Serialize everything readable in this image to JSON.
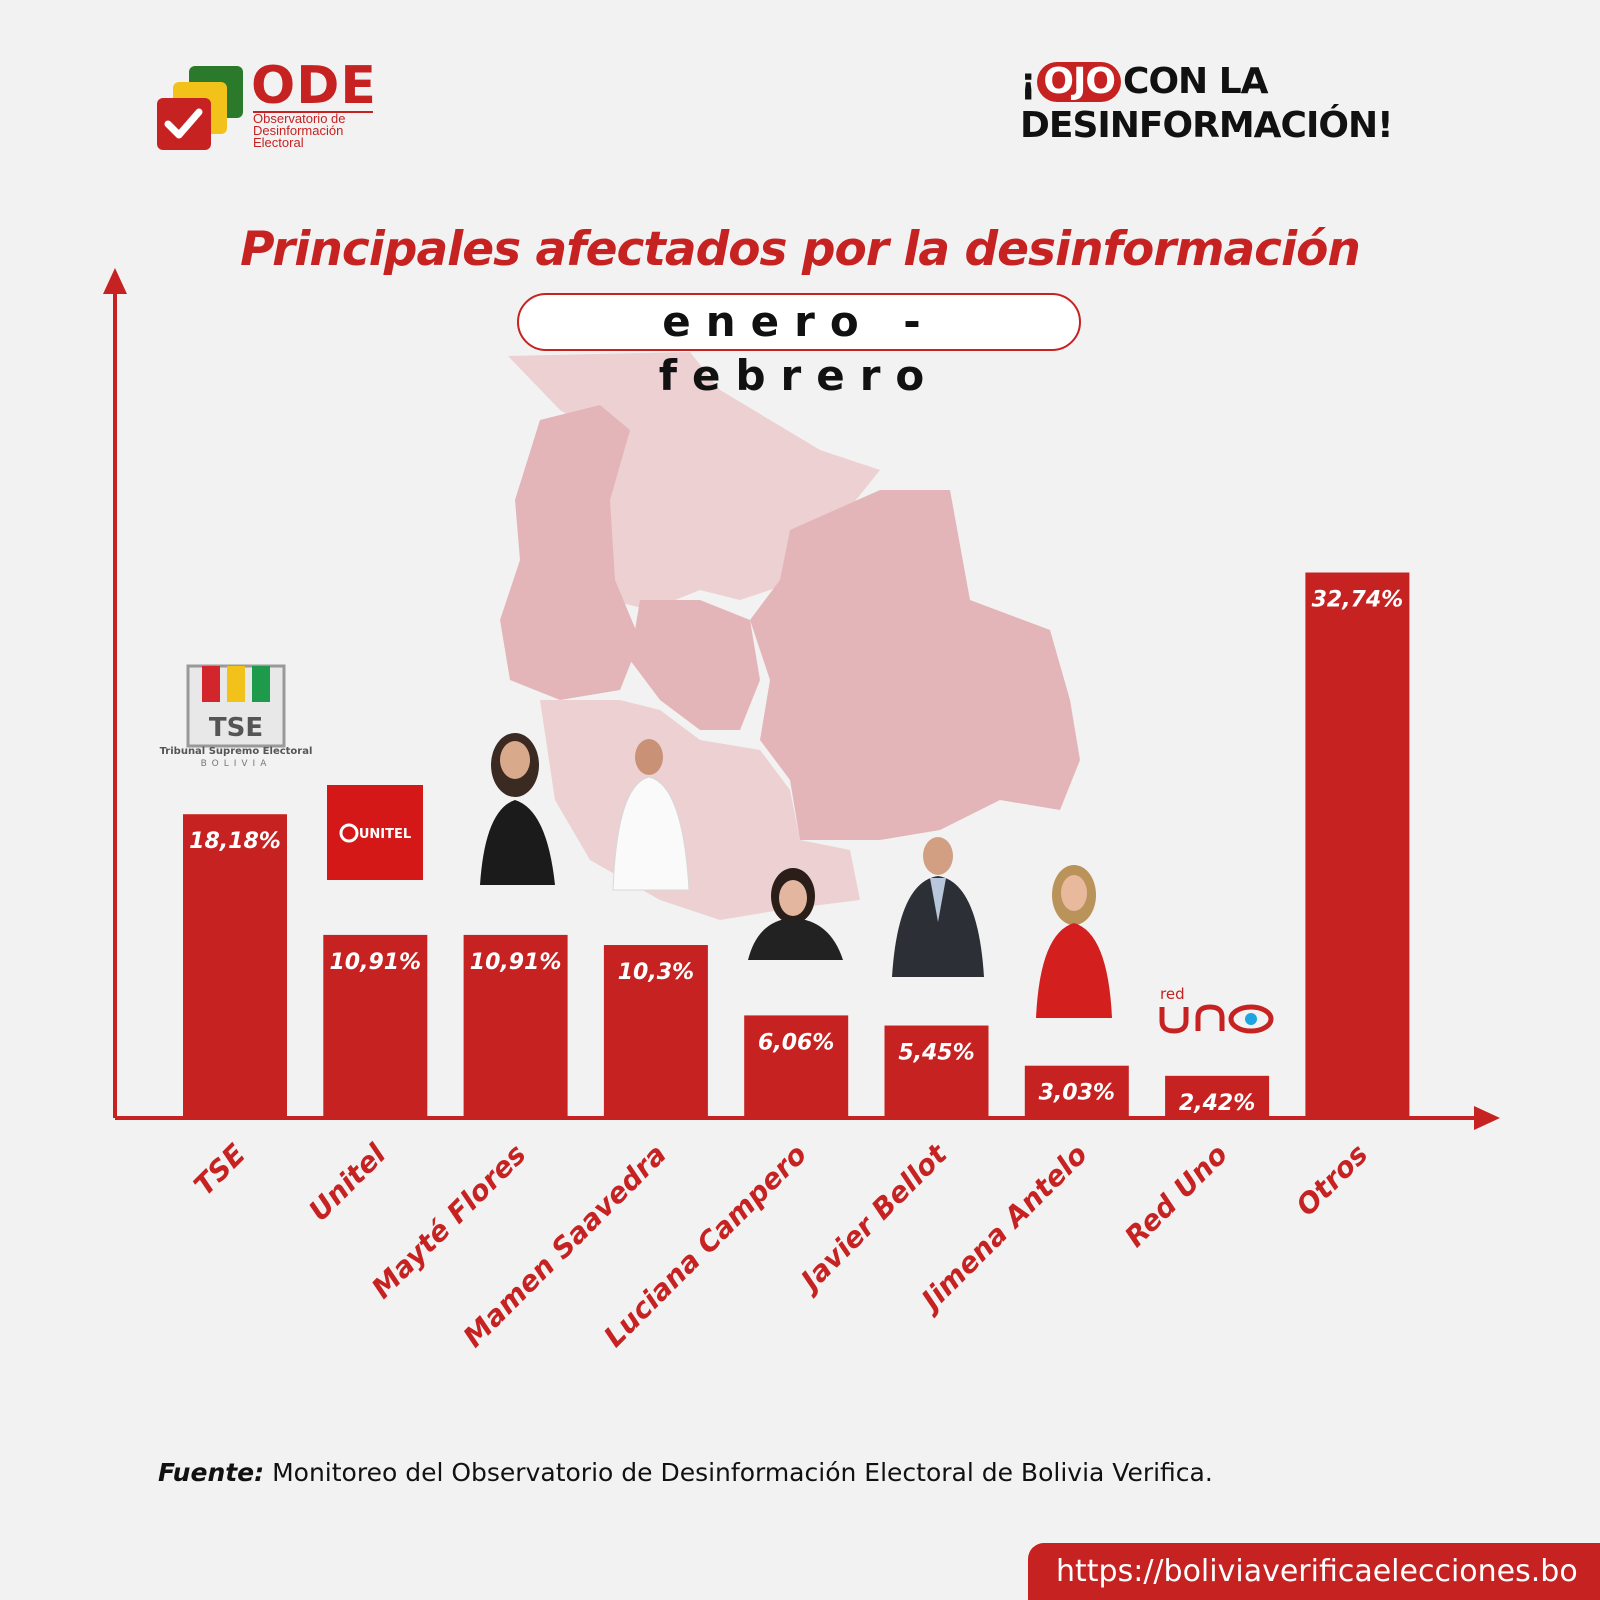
{
  "header": {
    "logo_word": "ODE",
    "logo_subtitle": [
      "Observatorio de",
      "Desinformación",
      "Electoral"
    ],
    "slogan_prefix": "¡",
    "slogan_highlight": "OJO",
    "slogan_rest": "CON LA",
    "slogan_line2": "DESINFORMACIÓN!"
  },
  "title": "Principales afectados por la desinformación",
  "subtitle": "enero - febrero",
  "logos": {
    "tse_text": "TSE",
    "tse_line1": "Tribunal Supremo Electoral",
    "tse_line2": "BOLIVIA",
    "unitel_text": "UNITEL",
    "redUno_small": "red",
    "redUno_big": "UNO"
  },
  "chart_data": {
    "type": "bar",
    "title": "Principales afectados por la desinformación",
    "subtitle": "enero - febrero",
    "categories": [
      "TSE",
      "Unitel",
      "Mayté Flores",
      "Mamen Saavedra",
      "Luciana Campero",
      "Javier Bellot",
      "Jimena Antelo",
      "Red Uno",
      "Otros"
    ],
    "values": [
      18.18,
      10.91,
      10.91,
      10.3,
      6.06,
      5.45,
      3.03,
      2.42,
      32.74
    ],
    "value_labels": [
      "18,18%",
      "10,91%",
      "10,91%",
      "10,3%",
      "6,06%",
      "5,45%",
      "3,03%",
      "2,42%",
      "32,74%"
    ],
    "unit": "%",
    "ylim": [
      0,
      50
    ],
    "grid": false,
    "bar_color": "#c62222"
  },
  "footer": {
    "source_label": "Fuente:",
    "source_text": "Monitoreo del Observatorio de Desinformación Electoral de Bolivia Verifica.",
    "url": "https://boliviaverificaelecciones.bo"
  },
  "colors": {
    "accent": "#c62222",
    "background": "#f2f2f2",
    "map": "#e3b5b8",
    "map_light": "#ecd0d2"
  }
}
